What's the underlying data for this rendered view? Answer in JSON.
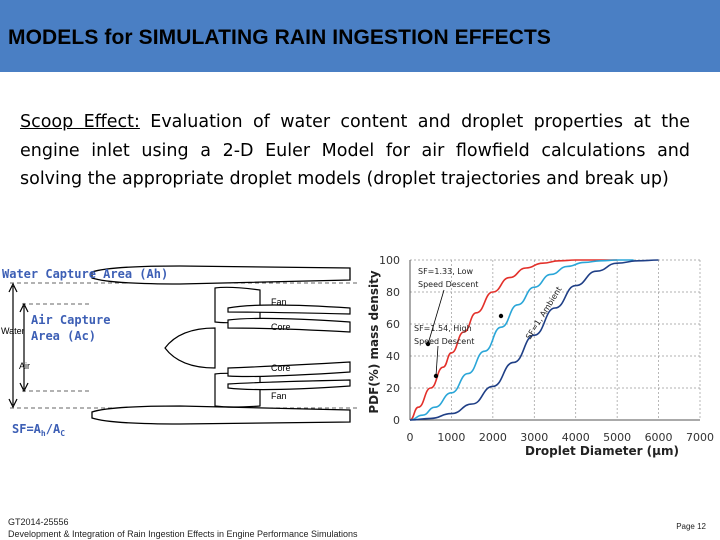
{
  "slide": {
    "title": "MODELS for SIMULATING RAIN INGESTION EFFECTS",
    "lead_label": "Scoop Effect:",
    "lead_text": " Evaluation of water content and droplet properties at the engine inlet using a 2-D Euler Model for air flowfield calculations and solving the appropriate droplet models (droplet trajectories and break up)",
    "footer_line1": "GT2014-25556",
    "footer_line2": "Development & Integration of Rain Ingestion Effects in Engine Performance Simulations",
    "page": "Page 12"
  },
  "diagram": {
    "water_capture": "Water Capture Area (Ah)",
    "air_capture_1": "Air Capture",
    "air_capture_2": "Area (Ac)",
    "water": "Water",
    "air": "Air",
    "fan": "Fan",
    "core": "Core",
    "sf_main": "SF=A",
    "sf_sub1": "h",
    "sf_div": "/A",
    "sf_sub2": "C"
  },
  "colors": {
    "header": "#4a7fc4",
    "red_curve": "#e3302a",
    "cyan_curve": "#2aa6d8",
    "navy_curve": "#1f3f86",
    "diagram_label": "#3d5fb5"
  },
  "chart_data": {
    "type": "line",
    "title": "",
    "xlabel": "Droplet Diameter (μm)",
    "ylabel": "PDF(%) mass density",
    "xlim": [
      0,
      7000
    ],
    "ylim": [
      0,
      100
    ],
    "xticks": [
      "0",
      "1000",
      "2000",
      "3000",
      "4000",
      "5000",
      "6000",
      "7000"
    ],
    "yticks": [
      "0",
      "20",
      "40",
      "60",
      "80",
      "100"
    ],
    "series": [
      {
        "name": "SF=1.33, Low Speed Descent",
        "color": "#e3302a",
        "x": [
          0,
          200,
          500,
          800,
          1000,
          1300,
          1600,
          2000,
          2400,
          2800,
          3200,
          3600,
          4000,
          4500,
          5000
        ],
        "y": [
          0,
          8,
          20,
          33,
          42,
          55,
          67,
          80,
          89,
          95,
          98,
          99.5,
          100,
          100,
          100
        ]
      },
      {
        "name": "SF=1.54, High Speed Descent",
        "color": "#2aa6d8",
        "x": [
          0,
          300,
          600,
          1000,
          1400,
          1800,
          2200,
          2600,
          3000,
          3400,
          3800,
          4200,
          4600,
          5000,
          5400
        ],
        "y": [
          0,
          3,
          8,
          17,
          29,
          43,
          58,
          72,
          83,
          91,
          96,
          98.5,
          99.5,
          100,
          100
        ]
      },
      {
        "name": "SF=1, Ambient",
        "color": "#1f3f86",
        "x": [
          0,
          500,
          1000,
          1500,
          2000,
          2500,
          3000,
          3500,
          4000,
          4500,
          5000,
          5500,
          6000
        ],
        "y": [
          0,
          1,
          4,
          10,
          21,
          36,
          53,
          70,
          84,
          93,
          98,
          99.5,
          100
        ]
      }
    ],
    "annotations": [
      "SF=1.33, Low",
      "Speed Descent",
      "SF=1.54, High",
      "Speed Descent",
      "SF=1, Ambient"
    ]
  }
}
